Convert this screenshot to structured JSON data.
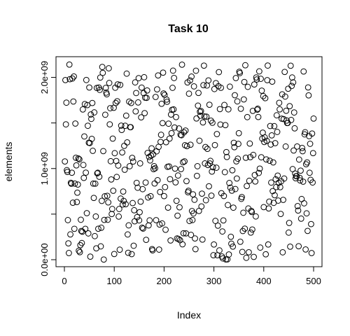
{
  "chart_data": {
    "type": "scatter",
    "title": "Task 10",
    "xlabel": "Index",
    "ylabel": "elements",
    "xlim": [
      0,
      500
    ],
    "ylim": [
      0,
      2150000000
    ],
    "x_ticks": [
      0,
      100,
      200,
      300,
      400,
      500
    ],
    "x_tick_labels": [
      "0",
      "100",
      "200",
      "300",
      "400",
      "500"
    ],
    "y_ticks": [
      0,
      500000000,
      1000000000,
      1500000000,
      2000000000
    ],
    "y_tick_labels": [
      "0.0e+00",
      "",
      "1.0e+09",
      "",
      "2.0e+09"
    ],
    "marker": "open-circle",
    "color": "#000000",
    "n_points": 500,
    "random_seed": 10,
    "y_max": 2147483647
  }
}
